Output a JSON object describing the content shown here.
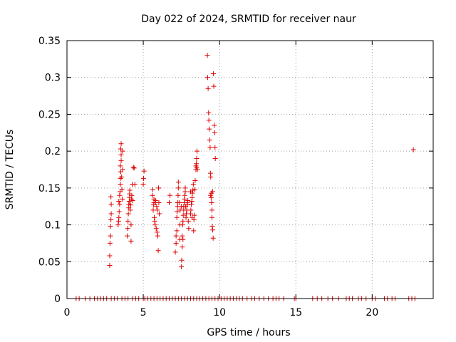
{
  "chart_data": {
    "type": "scatter",
    "title": "Day 022 of 2024, SRMTID for receiver naur",
    "xlabel": "GPS time / hours",
    "ylabel": "SRMTID / TECUs",
    "xlim": [
      0,
      24
    ],
    "ylim": [
      0,
      0.35
    ],
    "xticks": [
      0,
      5,
      10,
      15,
      20
    ],
    "xtick_labels": [
      "0",
      "5",
      "10",
      "15",
      "20"
    ],
    "yticks": [
      0,
      0.05,
      0.1,
      0.15,
      0.2,
      0.25,
      0.3,
      0.35
    ],
    "ytick_labels": [
      "0",
      "0.05",
      "0.1",
      "0.15",
      "0.2",
      "0.25",
      "0.3",
      "0.35"
    ],
    "grid": true,
    "marker": "+",
    "color": "#e00000",
    "series": [
      {
        "name": "naur",
        "points": [
          [
            2.8,
            0.045
          ],
          [
            2.8,
            0.058
          ],
          [
            2.82,
            0.075
          ],
          [
            2.85,
            0.085
          ],
          [
            2.85,
            0.098
          ],
          [
            2.88,
            0.107
          ],
          [
            2.9,
            0.115
          ],
          [
            2.9,
            0.128
          ],
          [
            2.88,
            0.138
          ],
          [
            3.35,
            0.1
          ],
          [
            3.38,
            0.105
          ],
          [
            3.4,
            0.11
          ],
          [
            3.42,
            0.118
          ],
          [
            3.45,
            0.128
          ],
          [
            3.45,
            0.14
          ],
          [
            3.48,
            0.145
          ],
          [
            3.5,
            0.155
          ],
          [
            3.5,
            0.163
          ],
          [
            3.52,
            0.172
          ],
          [
            3.5,
            0.18
          ],
          [
            3.55,
            0.187
          ],
          [
            3.55,
            0.195
          ],
          [
            3.52,
            0.203
          ],
          [
            3.55,
            0.21
          ],
          [
            3.58,
            0.165
          ],
          [
            3.6,
            0.148
          ],
          [
            3.62,
            0.135
          ],
          [
            3.65,
            0.175
          ],
          [
            3.65,
            0.2
          ],
          [
            3.4,
            0.132
          ],
          [
            3.95,
            0.085
          ],
          [
            3.98,
            0.095
          ],
          [
            4.0,
            0.105
          ],
          [
            4.02,
            0.115
          ],
          [
            4.05,
            0.123
          ],
          [
            4.05,
            0.128
          ],
          [
            4.08,
            0.132
          ],
          [
            4.1,
            0.137
          ],
          [
            4.1,
            0.142
          ],
          [
            4.12,
            0.147
          ],
          [
            4.15,
            0.12
          ],
          [
            4.18,
            0.127
          ],
          [
            4.2,
            0.078
          ],
          [
            4.2,
            0.1
          ],
          [
            4.22,
            0.135
          ],
          [
            4.25,
            0.14
          ],
          [
            4.28,
            0.155
          ],
          [
            4.35,
            0.178
          ],
          [
            4.4,
            0.177
          ],
          [
            4.45,
            0.155
          ],
          [
            4.3,
            0.133
          ],
          [
            5.0,
            0.155
          ],
          [
            5.02,
            0.163
          ],
          [
            5.05,
            0.173
          ],
          [
            5.6,
            0.14
          ],
          [
            5.62,
            0.148
          ],
          [
            5.65,
            0.12
          ],
          [
            5.68,
            0.127
          ],
          [
            5.7,
            0.13
          ],
          [
            5.72,
            0.11
          ],
          [
            5.75,
            0.105
          ],
          [
            5.78,
            0.1
          ],
          [
            5.8,
            0.133
          ],
          [
            5.82,
            0.13
          ],
          [
            5.85,
            0.095
          ],
          [
            5.88,
            0.125
          ],
          [
            5.9,
            0.09
          ],
          [
            5.92,
            0.12
          ],
          [
            5.95,
            0.085
          ],
          [
            5.98,
            0.065
          ],
          [
            6.0,
            0.15
          ],
          [
            6.02,
            0.13
          ],
          [
            6.05,
            0.115
          ],
          [
            5.7,
            0.135
          ],
          [
            6.7,
            0.13
          ],
          [
            6.75,
            0.14
          ],
          [
            7.1,
            0.063
          ],
          [
            7.15,
            0.075
          ],
          [
            7.15,
            0.085
          ],
          [
            7.2,
            0.092
          ],
          [
            7.2,
            0.11
          ],
          [
            7.22,
            0.118
          ],
          [
            7.25,
            0.125
          ],
          [
            7.25,
            0.13
          ],
          [
            7.28,
            0.14
          ],
          [
            7.3,
            0.15
          ],
          [
            7.3,
            0.158
          ],
          [
            7.35,
            0.13
          ],
          [
            7.4,
            0.08
          ],
          [
            7.4,
            0.1
          ],
          [
            7.42,
            0.12
          ],
          [
            7.5,
            0.043
          ],
          [
            7.52,
            0.052
          ],
          [
            7.55,
            0.07
          ],
          [
            7.55,
            0.085
          ],
          [
            7.58,
            0.1
          ],
          [
            7.6,
            0.105
          ],
          [
            7.62,
            0.113
          ],
          [
            7.65,
            0.12
          ],
          [
            7.65,
            0.125
          ],
          [
            7.68,
            0.13
          ],
          [
            7.7,
            0.135
          ],
          [
            7.72,
            0.14
          ],
          [
            7.75,
            0.145
          ],
          [
            7.75,
            0.15
          ],
          [
            7.78,
            0.125
          ],
          [
            7.8,
            0.11
          ],
          [
            7.82,
            0.115
          ],
          [
            7.85,
            0.12
          ],
          [
            7.88,
            0.127
          ],
          [
            7.9,
            0.13
          ],
          [
            7.92,
            0.133
          ],
          [
            7.95,
            0.105
          ],
          [
            7.98,
            0.095
          ],
          [
            7.5,
            0.125
          ],
          [
            7.6,
            0.08
          ],
          [
            8.1,
            0.115
          ],
          [
            8.12,
            0.12
          ],
          [
            8.15,
            0.128
          ],
          [
            8.18,
            0.132
          ],
          [
            8.2,
            0.137
          ],
          [
            8.22,
            0.143
          ],
          [
            8.25,
            0.147
          ],
          [
            8.28,
            0.155
          ],
          [
            8.3,
            0.092
          ],
          [
            8.32,
            0.107
          ],
          [
            8.35,
            0.113
          ],
          [
            8.38,
            0.148
          ],
          [
            8.4,
            0.16
          ],
          [
            8.45,
            0.175
          ],
          [
            8.45,
            0.18
          ],
          [
            8.48,
            0.183
          ],
          [
            8.5,
            0.178
          ],
          [
            8.5,
            0.19
          ],
          [
            8.52,
            0.2
          ],
          [
            8.55,
            0.175
          ],
          [
            8.1,
            0.145
          ],
          [
            8.2,
            0.11
          ],
          [
            9.2,
            0.33
          ],
          [
            9.22,
            0.3
          ],
          [
            9.25,
            0.285
          ],
          [
            9.28,
            0.252
          ],
          [
            9.3,
            0.242
          ],
          [
            9.32,
            0.23
          ],
          [
            9.35,
            0.215
          ],
          [
            9.38,
            0.205
          ],
          [
            9.4,
            0.17
          ],
          [
            9.42,
            0.165
          ],
          [
            9.45,
            0.143
          ],
          [
            9.45,
            0.137
          ],
          [
            9.48,
            0.13
          ],
          [
            9.5,
            0.12
          ],
          [
            9.5,
            0.11
          ],
          [
            9.52,
            0.098
          ],
          [
            9.55,
            0.093
          ],
          [
            9.58,
            0.082
          ],
          [
            9.6,
            0.305
          ],
          [
            9.62,
            0.288
          ],
          [
            9.65,
            0.235
          ],
          [
            9.68,
            0.225
          ],
          [
            9.7,
            0.205
          ],
          [
            9.72,
            0.19
          ],
          [
            9.4,
            0.14
          ],
          [
            9.55,
            0.145
          ],
          [
            22.7,
            0.202
          ],
          [
            0.6,
            0
          ],
          [
            0.8,
            0
          ],
          [
            1.2,
            0
          ],
          [
            1.5,
            0
          ],
          [
            1.8,
            0
          ],
          [
            2.0,
            0
          ],
          [
            2.2,
            0
          ],
          [
            2.4,
            0
          ],
          [
            2.6,
            0
          ],
          [
            2.9,
            0
          ],
          [
            3.1,
            0
          ],
          [
            3.3,
            0
          ],
          [
            3.6,
            0
          ],
          [
            3.8,
            0
          ],
          [
            4.0,
            0
          ],
          [
            4.3,
            0
          ],
          [
            4.5,
            0
          ],
          [
            4.7,
            0
          ],
          [
            5.0,
            0
          ],
          [
            5.1,
            0
          ],
          [
            5.3,
            0
          ],
          [
            5.5,
            0
          ],
          [
            5.7,
            0
          ],
          [
            5.9,
            0
          ],
          [
            6.1,
            0
          ],
          [
            6.3,
            0
          ],
          [
            6.5,
            0
          ],
          [
            6.7,
            0
          ],
          [
            6.9,
            0
          ],
          [
            7.1,
            0
          ],
          [
            7.3,
            0
          ],
          [
            7.5,
            0
          ],
          [
            7.7,
            0
          ],
          [
            7.9,
            0
          ],
          [
            8.1,
            0
          ],
          [
            8.3,
            0
          ],
          [
            8.5,
            0
          ],
          [
            8.7,
            0
          ],
          [
            8.9,
            0
          ],
          [
            9.1,
            0
          ],
          [
            9.3,
            0
          ],
          [
            9.5,
            0
          ],
          [
            9.7,
            0
          ],
          [
            9.9,
            0
          ],
          [
            10.1,
            0
          ],
          [
            10.3,
            0
          ],
          [
            10.5,
            0
          ],
          [
            10.7,
            0
          ],
          [
            10.9,
            0
          ],
          [
            11.1,
            0
          ],
          [
            11.3,
            0
          ],
          [
            11.5,
            0
          ],
          [
            11.8,
            0
          ],
          [
            12.1,
            0
          ],
          [
            12.3,
            0
          ],
          [
            12.6,
            0
          ],
          [
            12.9,
            0
          ],
          [
            13.2,
            0
          ],
          [
            13.5,
            0
          ],
          [
            13.7,
            0
          ],
          [
            13.9,
            0
          ],
          [
            14.2,
            0
          ],
          [
            14.9,
            0
          ],
          [
            15.0,
            0
          ],
          [
            16.1,
            0
          ],
          [
            16.4,
            0
          ],
          [
            16.7,
            0
          ],
          [
            17.1,
            0
          ],
          [
            17.4,
            0
          ],
          [
            17.8,
            0
          ],
          [
            18.3,
            0
          ],
          [
            18.5,
            0
          ],
          [
            18.7,
            0
          ],
          [
            19.1,
            0
          ],
          [
            19.3,
            0
          ],
          [
            19.6,
            0
          ],
          [
            20.0,
            0
          ],
          [
            20.2,
            0
          ],
          [
            20.8,
            0
          ],
          [
            21.0,
            0
          ],
          [
            21.3,
            0
          ],
          [
            21.5,
            0
          ],
          [
            22.4,
            0
          ],
          [
            22.6,
            0
          ],
          [
            22.8,
            0
          ]
        ]
      }
    ]
  }
}
